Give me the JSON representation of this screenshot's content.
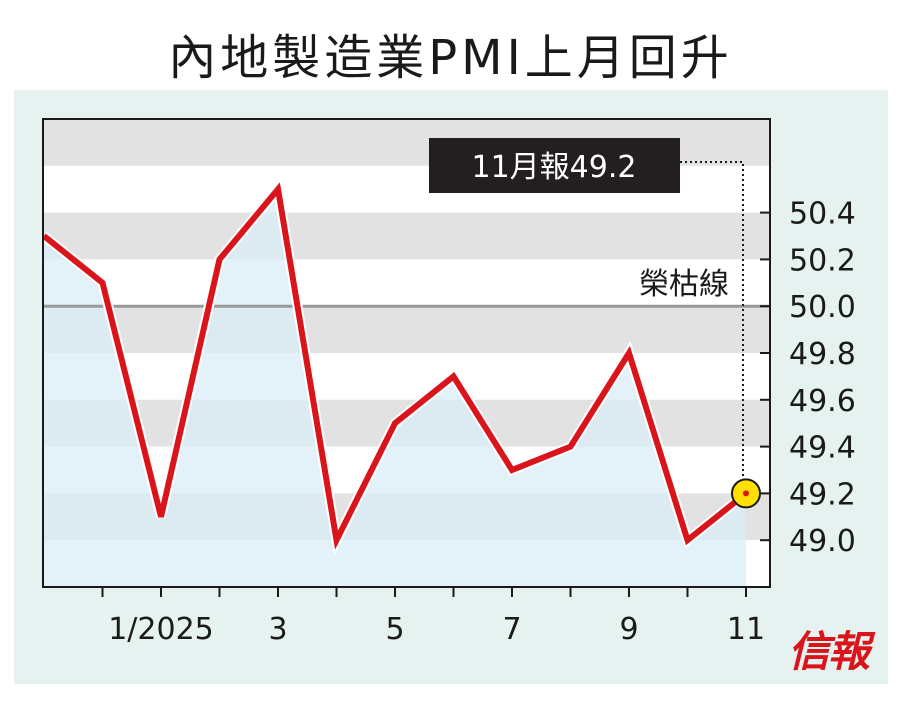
{
  "title": "內地製造業PMI上月回升",
  "logo_text": "信報",
  "chart_data": {
    "type": "line",
    "title": "內地製造業PMI上月回升",
    "xlabel": "",
    "ylabel": "",
    "x": [
      "2024-11",
      "2024-12",
      "2025-01",
      "2025-02",
      "2025-03",
      "2025-04",
      "2025-05",
      "2025-06",
      "2025-07",
      "2025-08",
      "2025-09",
      "2025-10",
      "2025-11"
    ],
    "x_tick_labels": [
      {
        "x": "2025-01",
        "label": "1/2025"
      },
      {
        "x": "2025-03",
        "label": "3"
      },
      {
        "x": "2025-05",
        "label": "5"
      },
      {
        "x": "2025-07",
        "label": "7"
      },
      {
        "x": "2025-09",
        "label": "9"
      },
      {
        "x": "2025-11",
        "label": "11"
      }
    ],
    "series": [
      {
        "values": [
          50.3,
          50.1,
          49.1,
          50.2,
          50.5,
          49.0,
          49.5,
          49.7,
          49.3,
          49.4,
          49.8,
          49.0,
          49.2
        ]
      }
    ],
    "y_ticks": [
      49.0,
      49.2,
      49.4,
      49.6,
      49.8,
      50.0,
      50.2,
      50.4
    ],
    "y_tick_labels": [
      "49.0",
      "49.2",
      "49.4",
      "49.6",
      "49.8",
      "50.0",
      "50.2",
      "50.4"
    ],
    "ylim": [
      48.8,
      50.8
    ],
    "reference_line": {
      "value": 50.0,
      "label": "榮枯線"
    },
    "annotation": {
      "x": "2025-11",
      "value": 49.2,
      "text": "11月報49.2"
    },
    "grid": "alternating horizontal bands",
    "colors": {
      "line": "#d9151b",
      "area": "#d9ecf7",
      "band_dark": "#e2e2e2",
      "band_light": "#ffffff",
      "reference_line": "#9a9a9a",
      "marker": "#ffe000",
      "annotation_box": "#231f20"
    }
  }
}
